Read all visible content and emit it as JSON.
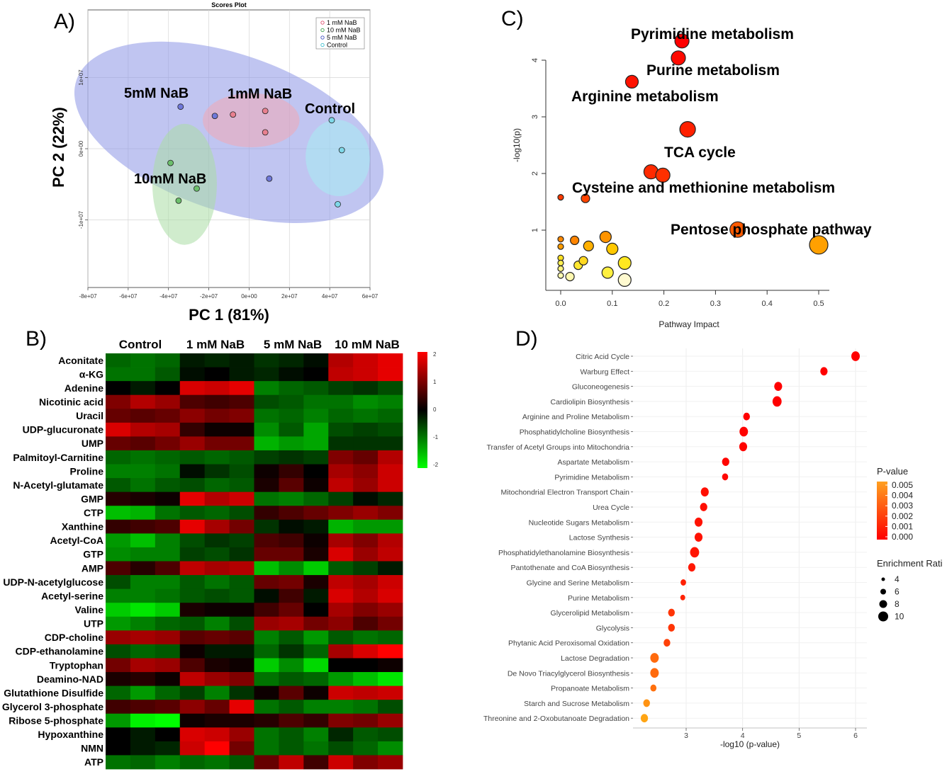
{
  "panel_labels": {
    "a": "A)",
    "b": "B)",
    "c": "C)",
    "d": "D)"
  },
  "colors": {
    "ellipse_5mM": "#8c96e6",
    "ellipse_1mM": "#f0a8b4",
    "ellipse_10mM": "#a9dca4",
    "ellipse_control": "#a6ecf2",
    "dot_5mM": "#6f78d9",
    "dot_1mM": "#e8808f",
    "dot_10mM": "#6cbf6c",
    "dot_control": "#7fd8e8",
    "legend_1mM": "#e05070",
    "legend_10mM": "#40a050",
    "legend_5mM": "#4050c0",
    "legend_control": "#40c0d0"
  },
  "chart_data": [
    {
      "type": "scatter",
      "title": "Scores Plot",
      "xlabel": "PC 1 (81%)",
      "ylabel": "PC 2 (22%)",
      "xlim": [
        -80000000.0,
        60000000.0
      ],
      "ylim": [
        -19500000.0,
        19500000.0
      ],
      "xticks": [
        -80000000.0,
        -60000000.0,
        -40000000.0,
        -20000000.0,
        0,
        20000000.0,
        40000000.0,
        60000000.0
      ],
      "xtick_labels": [
        "-8e+07",
        "-6e+07",
        "-4e+07",
        "-2e+07",
        "0e+00",
        "2e+07",
        "4e+07",
        "6e+07"
      ],
      "yticks": [
        10000000.0,
        0,
        -10000000.0
      ],
      "ytick_labels": [
        "1e+07",
        "0e+00",
        "-1e+07"
      ],
      "legend": [
        "1 mM NaB",
        "10 mM NaB",
        "5 mM NaB",
        "Control"
      ],
      "legend_position": "top-right",
      "grid": true,
      "group_labels": [
        "5mM NaB",
        "1mM NaB",
        "Control",
        "10mM NaB"
      ],
      "series": [
        {
          "name": "1 mM NaB",
          "x": [
            -8000000.0,
            8000000.0,
            8000000.0
          ],
          "y": [
            4800000.0,
            5300000.0,
            2300000.0
          ],
          "ellipse": {
            "cx": 1000000.0,
            "cy": 4000000.0,
            "rx": 24000000.0,
            "ry": 3800000.0,
            "angle_deg": 0
          }
        },
        {
          "name": "10 mM NaB",
          "x": [
            -39000000.0,
            -26000000.0,
            -35000000.0
          ],
          "y": [
            -2000000.0,
            -5600000.0,
            -7300000.0
          ],
          "ellipse": {
            "cx": -32000000.0,
            "cy": -5000000.0,
            "rx": 16000000.0,
            "ry": 8500000.0,
            "angle_deg": 0
          }
        },
        {
          "name": "5 mM NaB",
          "x": [
            -34000000.0,
            -17000000.0,
            10000000.0
          ],
          "y": [
            5900000.0,
            4600000.0,
            -4200000.0
          ],
          "ellipse": {
            "cx": -10000000.0,
            "cy": 2300000.0,
            "rx": 80000000.0,
            "ry": 11000000.0,
            "angle_deg": 19
          }
        },
        {
          "name": "Control",
          "x": [
            41000000.0,
            46000000.0,
            44000000.0
          ],
          "y": [
            4000000.0,
            -200000.0,
            -7800000.0
          ],
          "ellipse": {
            "cx": 44000000.0,
            "cy": -1300000.0,
            "rx": 19000000.0,
            "ry": 4500000.0,
            "angle_deg": 85
          }
        }
      ]
    },
    {
      "type": "heatmap",
      "columns": [
        "Control",
        "1 mM NaB",
        "5 mM NaB",
        "10 mM NaB"
      ],
      "rows": [
        "Aconitate",
        "α-KG",
        "Adenine",
        "Nicotinic acid",
        "Uracil",
        "UDP-glucuronate",
        "UMP",
        "Palmitoyl-Carnitine",
        "Proline",
        "N-Acetyl-glutamate",
        "GMP",
        "CTP",
        "Xanthine",
        "Acetyl-CoA",
        "GTP",
        "AMP",
        "UDP-N-acetylglucose",
        "Acetyl-serine",
        "Valine",
        "UTP",
        "CDP-choline",
        "CDP-ethanolamine",
        "Tryptophan",
        "Deamino-NAD",
        "Glutathione Disulfide",
        "Glycerol 3-phosphate",
        "Ribose 5-phosphate",
        "Hypoxanthine",
        "NMN",
        "ATP"
      ],
      "scale": {
        "min": -2,
        "max": 2,
        "ticks": [
          2,
          1,
          0,
          -1,
          -2
        ]
      },
      "values": [
        [
          -0.8,
          -0.9,
          -0.8,
          -0.2,
          -0.3,
          -0.2,
          -0.4,
          -0.3,
          -0.1,
          1.4,
          1.6,
          1.8
        ],
        [
          -0.9,
          -0.9,
          -0.7,
          -0.1,
          0.0,
          -0.2,
          -0.3,
          -0.1,
          0.0,
          1.5,
          1.6,
          1.8
        ],
        [
          0.0,
          -0.2,
          0.0,
          1.7,
          1.6,
          1.8,
          -1.0,
          -0.8,
          -0.7,
          -0.5,
          -0.4,
          -0.6
        ],
        [
          1.0,
          1.4,
          1.2,
          0.6,
          0.5,
          0.6,
          -0.6,
          -0.7,
          -0.9,
          -0.9,
          -1.1,
          -1.0
        ],
        [
          0.8,
          0.7,
          0.8,
          1.1,
          0.9,
          1.0,
          -0.9,
          -0.8,
          -1.0,
          -0.8,
          -0.9,
          -0.8
        ],
        [
          1.7,
          1.4,
          1.3,
          0.4,
          0.1,
          0.1,
          -1.1,
          -0.7,
          -1.3,
          -0.6,
          -0.5,
          -0.6
        ],
        [
          0.8,
          0.7,
          0.9,
          1.2,
          0.9,
          0.9,
          -1.4,
          -1.2,
          -1.3,
          -0.4,
          -0.4,
          -0.4
        ],
        [
          -0.8,
          -0.9,
          -0.8,
          -0.7,
          -0.8,
          -0.7,
          -0.5,
          -0.4,
          -0.5,
          1.0,
          0.8,
          1.4
        ],
        [
          -1.0,
          -1.0,
          -0.9,
          -0.1,
          -0.4,
          -0.6,
          0.1,
          0.4,
          0.0,
          1.3,
          1.1,
          1.6
        ],
        [
          -0.7,
          -0.9,
          -0.7,
          -0.6,
          -0.8,
          -0.7,
          0.2,
          0.7,
          0.1,
          1.5,
          1.2,
          1.6
        ],
        [
          0.3,
          0.2,
          0.1,
          1.8,
          1.4,
          1.6,
          -0.9,
          -1.0,
          -0.8,
          -0.5,
          -0.1,
          -0.3
        ],
        [
          -1.5,
          -1.4,
          -0.9,
          -0.7,
          -0.8,
          -0.6,
          0.4,
          0.6,
          0.8,
          1.0,
          1.2,
          1.0
        ],
        [
          0.4,
          0.5,
          0.6,
          1.8,
          1.3,
          0.9,
          -0.4,
          -0.1,
          -0.2,
          -1.4,
          -1.2,
          -1.2
        ],
        [
          -1.2,
          -1.5,
          -1.0,
          -0.6,
          -0.4,
          -0.5,
          0.6,
          0.5,
          0.1,
          1.3,
          1.0,
          1.4
        ],
        [
          -1.1,
          -1.0,
          -1.0,
          -0.5,
          -0.6,
          -0.4,
          0.8,
          0.8,
          0.2,
          1.7,
          1.2,
          1.5
        ],
        [
          0.6,
          0.3,
          0.6,
          1.5,
          1.3,
          1.4,
          -1.5,
          -1.1,
          -1.6,
          -0.7,
          -0.5,
          -0.2
        ],
        [
          -0.6,
          -1.0,
          -1.0,
          -0.7,
          -0.9,
          -0.7,
          0.8,
          0.9,
          0.2,
          1.5,
          1.3,
          1.6
        ],
        [
          -1.0,
          -1.0,
          -0.9,
          -0.7,
          -0.6,
          -0.7,
          -0.1,
          0.5,
          -0.2,
          1.7,
          1.4,
          1.7
        ],
        [
          -1.6,
          -1.8,
          -1.6,
          0.2,
          0.1,
          0.1,
          0.5,
          0.8,
          0.0,
          1.3,
          1.0,
          1.2
        ],
        [
          -1.2,
          -1.0,
          -0.8,
          -0.7,
          -1.0,
          -0.6,
          1.2,
          1.3,
          0.9,
          1.1,
          0.6,
          0.9
        ],
        [
          1.2,
          1.3,
          1.2,
          0.7,
          0.8,
          0.7,
          -1.0,
          -0.7,
          -1.2,
          -0.7,
          -0.9,
          -0.8
        ],
        [
          -0.6,
          -0.8,
          -0.7,
          0.1,
          -0.2,
          -0.2,
          -0.8,
          -0.4,
          -0.8,
          1.3,
          1.7,
          2.0
        ],
        [
          0.9,
          1.3,
          1.2,
          0.6,
          0.2,
          0.1,
          -1.6,
          -1.1,
          -1.7,
          0.0,
          0.0,
          0.1
        ],
        [
          0.2,
          0.3,
          0.1,
          1.5,
          1.2,
          1.0,
          -0.9,
          -0.7,
          -0.8,
          -1.2,
          -1.5,
          -1.8
        ],
        [
          -0.8,
          -1.2,
          -0.8,
          -0.5,
          -1.0,
          -0.4,
          0.1,
          0.7,
          0.1,
          1.6,
          1.5,
          1.6
        ],
        [
          0.5,
          0.6,
          0.7,
          1.1,
          0.8,
          1.8,
          -0.9,
          -0.7,
          -1.0,
          -1.0,
          -0.9,
          -0.6
        ],
        [
          -1.2,
          -1.9,
          -2.0,
          0.1,
          0.2,
          0.2,
          0.3,
          0.6,
          0.4,
          1.0,
          0.9,
          1.2
        ],
        [
          0.0,
          -0.2,
          0.0,
          1.7,
          1.6,
          1.2,
          -0.9,
          -0.7,
          -1.0,
          -0.3,
          -0.7,
          -0.6
        ],
        [
          0.0,
          -0.2,
          -0.3,
          1.6,
          2.0,
          0.9,
          -0.9,
          -0.7,
          -0.9,
          -0.6,
          -0.8,
          -1.1
        ],
        [
          -0.9,
          -0.8,
          -1.0,
          -0.8,
          -0.9,
          -0.7,
          0.8,
          1.5,
          0.5,
          1.6,
          1.0,
          1.2
        ]
      ]
    },
    {
      "type": "scatter",
      "xlabel": "Pathway Impact",
      "ylabel": "-log10(p)",
      "xlim": [
        0,
        0.52
      ],
      "ylim": [
        0,
        4.5
      ],
      "xticks": [
        0.0,
        0.1,
        0.2,
        0.3,
        0.4,
        0.5
      ],
      "xtick_labels": [
        "0.0",
        "0.1",
        "0.2",
        "0.3",
        "0.4",
        "0.5"
      ],
      "yticks": [
        1,
        2,
        3,
        4
      ],
      "ytick_labels": [
        "1",
        "2",
        "3",
        "4"
      ],
      "annotations": [
        "Pyrimidine metabolism",
        "Purine metabolism",
        "Arginine metabolism",
        "TCA cycle",
        "Cysteine and methionine metabolism",
        "Pentose phosphate pathway"
      ],
      "points": [
        {
          "x": 0.235,
          "y": 4.34,
          "size": 10,
          "color": "#ff0000"
        },
        {
          "x": 0.228,
          "y": 4.04,
          "size": 10,
          "color": "#ff0a00"
        },
        {
          "x": 0.138,
          "y": 3.62,
          "size": 9,
          "color": "#ff1200"
        },
        {
          "x": 0.246,
          "y": 2.78,
          "size": 11,
          "color": "#ff2000"
        },
        {
          "x": 0.175,
          "y": 2.03,
          "size": 10,
          "color": "#ff2a00"
        },
        {
          "x": 0.198,
          "y": 1.97,
          "size": 10,
          "color": "#ff3000"
        },
        {
          "x": 0.0,
          "y": 1.58,
          "size": 4,
          "color": "#ff3a00"
        },
        {
          "x": 0.048,
          "y": 1.56,
          "size": 6,
          "color": "#ff4400"
        },
        {
          "x": 0.343,
          "y": 1.01,
          "size": 11,
          "color": "#ff5a00"
        },
        {
          "x": 0.5,
          "y": 0.74,
          "size": 13,
          "color": "#ffa000"
        },
        {
          "x": 0.0,
          "y": 0.84,
          "size": 4,
          "color": "#ff8800"
        },
        {
          "x": 0.0,
          "y": 0.71,
          "size": 4,
          "color": "#ff9c00"
        },
        {
          "x": 0.027,
          "y": 0.82,
          "size": 6,
          "color": "#ff8400"
        },
        {
          "x": 0.054,
          "y": 0.72,
          "size": 7,
          "color": "#ffb000"
        },
        {
          "x": 0.087,
          "y": 0.88,
          "size": 8,
          "color": "#ff9400"
        },
        {
          "x": 0.1,
          "y": 0.67,
          "size": 8,
          "color": "#ffc800"
        },
        {
          "x": 0.0,
          "y": 0.51,
          "size": 4,
          "color": "#ffe020"
        },
        {
          "x": 0.0,
          "y": 0.42,
          "size": 4,
          "color": "#fff050"
        },
        {
          "x": 0.0,
          "y": 0.32,
          "size": 4,
          "color": "#fff480"
        },
        {
          "x": 0.0,
          "y": 0.2,
          "size": 4,
          "color": "#fffab0"
        },
        {
          "x": 0.018,
          "y": 0.18,
          "size": 6,
          "color": "#fff8b0"
        },
        {
          "x": 0.034,
          "y": 0.38,
          "size": 6,
          "color": "#ffe830"
        },
        {
          "x": 0.044,
          "y": 0.46,
          "size": 6,
          "color": "#ffd820"
        },
        {
          "x": 0.091,
          "y": 0.25,
          "size": 8,
          "color": "#fff040"
        },
        {
          "x": 0.124,
          "y": 0.42,
          "size": 9,
          "color": "#ffe820"
        },
        {
          "x": 0.124,
          "y": 0.12,
          "size": 9,
          "color": "#fffad0"
        }
      ]
    },
    {
      "type": "scatter",
      "xlabel": "-log10 (p-value)",
      "xlim": [
        2.1,
        6.15
      ],
      "xticks": [
        3,
        4,
        5,
        6
      ],
      "xtick_labels": [
        "3",
        "4",
        "5",
        "6"
      ],
      "legend_position": "right",
      "p_legend_title": "P-value",
      "p_legend_ticks": [
        "0.005",
        "0.004",
        "0.003",
        "0.002",
        "0.001",
        "0.000"
      ],
      "size_legend_title": "Enrichment Rati",
      "size_legend_values": [
        "4",
        "6",
        "8",
        "10"
      ],
      "categories": [
        "Citric Acid Cycle",
        "Warburg Effect",
        "Gluconeogenesis",
        "Cardiolipin Biosynthesis",
        "Arginine and Proline Metabolism",
        "Phosphatidylcholine Biosynthesis",
        "Transfer of Acetyl Groups into Mitochondria",
        "Aspartate Metabolism",
        "Pyrimidine Metabolism",
        "Mitochondrial Electron Transport Chain",
        "Urea Cycle",
        "Nucleotide Sugars Metabolism",
        "Lactose Synthesis",
        "Phosphatidylethanolamine Biosynthesis",
        "Pantothenate and CoA Biosynthesis",
        "Glycine and Serine Metabolism",
        "Purine Metabolism",
        "Glycerolipid Metabolism",
        "Glycolysis",
        "Phytanic Acid Peroxisomal Oxidation",
        "Lactose Degradation",
        "De Novo Triacylglycerol Biosynthesis",
        "Propanoate Metabolism",
        "Starch and Sucrose Metabolism",
        "Threonine and 2-Oxobutanoate Degradation"
      ],
      "x": [
        6.0,
        5.44,
        4.63,
        4.61,
        4.07,
        4.02,
        4.01,
        3.7,
        3.69,
        3.33,
        3.31,
        3.22,
        3.22,
        3.15,
        3.1,
        2.95,
        2.94,
        2.74,
        2.74,
        2.66,
        2.44,
        2.44,
        2.42,
        2.3,
        2.26
      ],
      "enrichment": [
        9,
        7,
        8,
        10,
        6,
        9,
        8,
        7,
        5,
        8,
        7,
        8,
        8,
        10,
        7,
        4,
        3,
        6,
        6,
        6,
        9,
        9,
        5,
        6,
        7
      ],
      "p_value": [
        0.0,
        0.0,
        0.0,
        0.0,
        0.0,
        0.0001,
        0.0001,
        0.0002,
        0.0002,
        0.0005,
        0.0005,
        0.0006,
        0.0006,
        0.0007,
        0.0008,
        0.0011,
        0.0012,
        0.0018,
        0.0018,
        0.0022,
        0.0036,
        0.0036,
        0.0038,
        0.005,
        0.0056
      ]
    }
  ]
}
